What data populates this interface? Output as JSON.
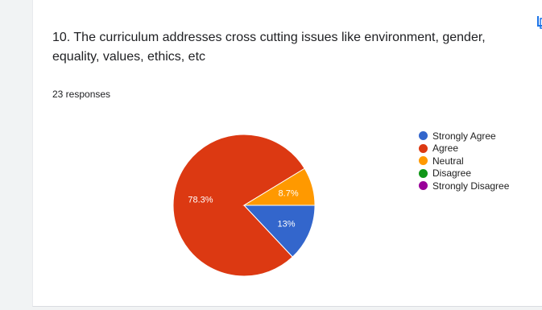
{
  "question": {
    "title": "10. The curriculum addresses cross cutting issues like environment, gender, equality, values, ethics, etc",
    "responses": "23 responses"
  },
  "icons": {
    "copy": "copy-icon"
  },
  "colors": {
    "background": "#f1f3f4",
    "card": "#ffffff",
    "copy_icon": "#1a73e8"
  },
  "chart_data": {
    "type": "pie",
    "total_responses": 23,
    "legend_position": "right",
    "slices": [
      {
        "name": "Strongly Agree",
        "value": 13,
        "label": "13%",
        "color": "#3366cc"
      },
      {
        "name": "Agree",
        "value": 78.3,
        "label": "78.3%",
        "color": "#dc3912"
      },
      {
        "name": "Neutral",
        "value": 8.7,
        "label": "8.7%",
        "color": "#ff9900"
      },
      {
        "name": "Disagree",
        "value": 0,
        "label": "",
        "color": "#109618"
      },
      {
        "name": "Strongly Disagree",
        "value": 0,
        "label": "",
        "color": "#990099"
      }
    ]
  }
}
